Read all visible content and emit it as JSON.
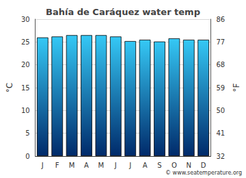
{
  "chart_data": {
    "type": "bar",
    "title": "Bahía de Caráquez water temp",
    "categories": [
      "J",
      "F",
      "M",
      "A",
      "M",
      "J",
      "J",
      "A",
      "S",
      "O",
      "N",
      "D"
    ],
    "values": [
      26.0,
      26.2,
      26.5,
      26.5,
      26.5,
      26.2,
      25.2,
      25.5,
      25.1,
      25.8,
      25.5,
      25.5
    ],
    "color": "#35c8f5",
    "ylabel": "°C",
    "ylim": [
      0,
      30
    ],
    "yticks": [
      0,
      5,
      10,
      15,
      20,
      25,
      30
    ],
    "y2label": "°F",
    "y2lim": [
      32,
      86
    ],
    "y2ticks": [
      32,
      41,
      50,
      59,
      68,
      77,
      86
    ],
    "grid": true,
    "annotation": "© www.seatemperature.org"
  }
}
